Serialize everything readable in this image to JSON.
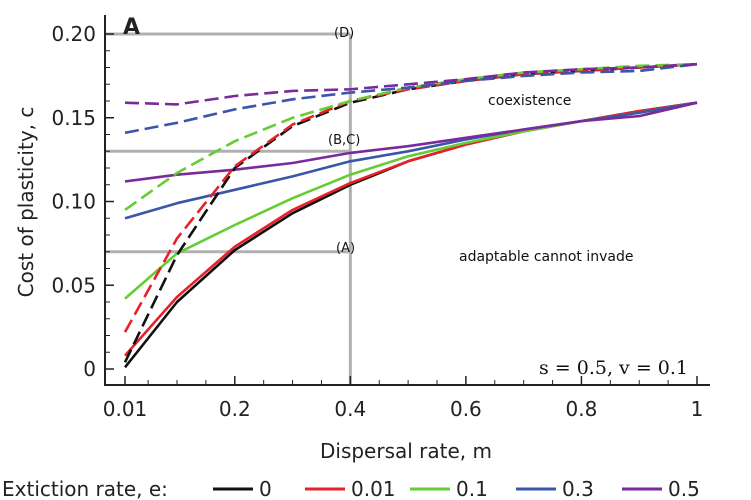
{
  "chart_data": {
    "type": "line",
    "panel_label": "A",
    "xlabel": "Dispersal rate, m",
    "ylabel": "Cost of plasticity, c",
    "xlim": [
      0.01,
      1
    ],
    "ylim": [
      0,
      0.21
    ],
    "x_ticks": [
      "0.01",
      "0.2",
      "0.4",
      "0.6",
      "0.8",
      "1"
    ],
    "y_ticks": [
      "0",
      "0.05",
      "0.10",
      "0.15",
      "0.20"
    ],
    "legend": {
      "title": "Extiction rate, e:",
      "placement": "bottom",
      "entries": [
        "0",
        "0.01",
        "0.1",
        "0.3",
        "0.5"
      ]
    },
    "annotations": {
      "coexistence": "coexistence",
      "cannot_invade": "adaptable cannot invade",
      "params": "s = 0.5, v = 0.1",
      "marker_A": "(A)",
      "marker_BC": "(B,C)",
      "marker_D": "(D)"
    },
    "reference_lines": {
      "vertical_x": 0.4,
      "horizontal_y": [
        0.07,
        0.13,
        0.2
      ]
    },
    "series": [
      {
        "name": "0",
        "style": "solid",
        "color": "#111111",
        "x": [
          0.01,
          0.1,
          0.2,
          0.3,
          0.4,
          0.5,
          0.6,
          0.7,
          0.8,
          0.9,
          1.0
        ],
        "y": [
          0.001,
          0.04,
          0.071,
          0.093,
          0.11,
          0.124,
          0.134,
          0.142,
          0.148,
          0.154,
          0.159
        ]
      },
      {
        "name": "0.01",
        "style": "solid",
        "color": "#e8202a",
        "x": [
          0.01,
          0.1,
          0.2,
          0.3,
          0.4,
          0.5,
          0.6,
          0.7,
          0.8,
          0.9,
          1.0
        ],
        "y": [
          0.008,
          0.043,
          0.073,
          0.095,
          0.111,
          0.124,
          0.134,
          0.142,
          0.148,
          0.154,
          0.159
        ]
      },
      {
        "name": "0.1",
        "style": "solid",
        "color": "#66cc33",
        "x": [
          0.01,
          0.1,
          0.2,
          0.3,
          0.4,
          0.5,
          0.6,
          0.7,
          0.8,
          0.9,
          1.0
        ],
        "y": [
          0.042,
          0.069,
          0.086,
          0.102,
          0.116,
          0.127,
          0.135,
          0.142,
          0.148,
          0.153,
          0.159
        ]
      },
      {
        "name": "0.3",
        "style": "solid",
        "color": "#3b55a8",
        "x": [
          0.01,
          0.1,
          0.2,
          0.3,
          0.4,
          0.5,
          0.6,
          0.7,
          0.8,
          0.9,
          1.0
        ],
        "y": [
          0.09,
          0.099,
          0.107,
          0.115,
          0.124,
          0.13,
          0.137,
          0.143,
          0.148,
          0.153,
          0.159
        ]
      },
      {
        "name": "0.5",
        "style": "solid",
        "color": "#7a2a9a",
        "x": [
          0.01,
          0.1,
          0.2,
          0.3,
          0.4,
          0.5,
          0.6,
          0.7,
          0.8,
          0.9,
          1.0
        ],
        "y": [
          0.112,
          0.116,
          0.119,
          0.123,
          0.129,
          0.133,
          0.138,
          0.143,
          0.148,
          0.151,
          0.159
        ]
      },
      {
        "name": "0",
        "style": "dashed",
        "color": "#111111",
        "x": [
          0.01,
          0.1,
          0.2,
          0.3,
          0.4,
          0.5,
          0.6,
          0.7,
          0.8,
          0.9,
          1.0
        ],
        "y": [
          0.004,
          0.068,
          0.12,
          0.145,
          0.159,
          0.167,
          0.172,
          0.176,
          0.178,
          0.18,
          0.182
        ]
      },
      {
        "name": "0.01",
        "style": "dashed",
        "color": "#e8202a",
        "x": [
          0.01,
          0.1,
          0.2,
          0.3,
          0.4,
          0.5,
          0.6,
          0.7,
          0.8,
          0.9,
          1.0
        ],
        "y": [
          0.022,
          0.078,
          0.121,
          0.146,
          0.16,
          0.167,
          0.172,
          0.176,
          0.178,
          0.18,
          0.182
        ]
      },
      {
        "name": "0.1",
        "style": "dashed",
        "color": "#66cc33",
        "x": [
          0.01,
          0.1,
          0.2,
          0.3,
          0.4,
          0.5,
          0.6,
          0.7,
          0.8,
          0.9,
          1.0
        ],
        "y": [
          0.095,
          0.117,
          0.136,
          0.15,
          0.16,
          0.168,
          0.173,
          0.177,
          0.179,
          0.181,
          0.182
        ]
      },
      {
        "name": "0.3",
        "style": "dashed",
        "color": "#3b55a8",
        "x": [
          0.01,
          0.1,
          0.2,
          0.3,
          0.4,
          0.5,
          0.6,
          0.7,
          0.8,
          0.9,
          1.0
        ],
        "y": [
          0.141,
          0.147,
          0.155,
          0.161,
          0.165,
          0.168,
          0.172,
          0.175,
          0.177,
          0.178,
          0.182
        ]
      },
      {
        "name": "0.5",
        "style": "dashed",
        "color": "#7a2a9a",
        "x": [
          0.01,
          0.1,
          0.2,
          0.3,
          0.4,
          0.5,
          0.6,
          0.7,
          0.8,
          0.9,
          1.0
        ],
        "y": [
          0.159,
          0.158,
          0.163,
          0.166,
          0.167,
          0.17,
          0.173,
          0.177,
          0.179,
          0.18,
          0.182
        ]
      }
    ]
  }
}
